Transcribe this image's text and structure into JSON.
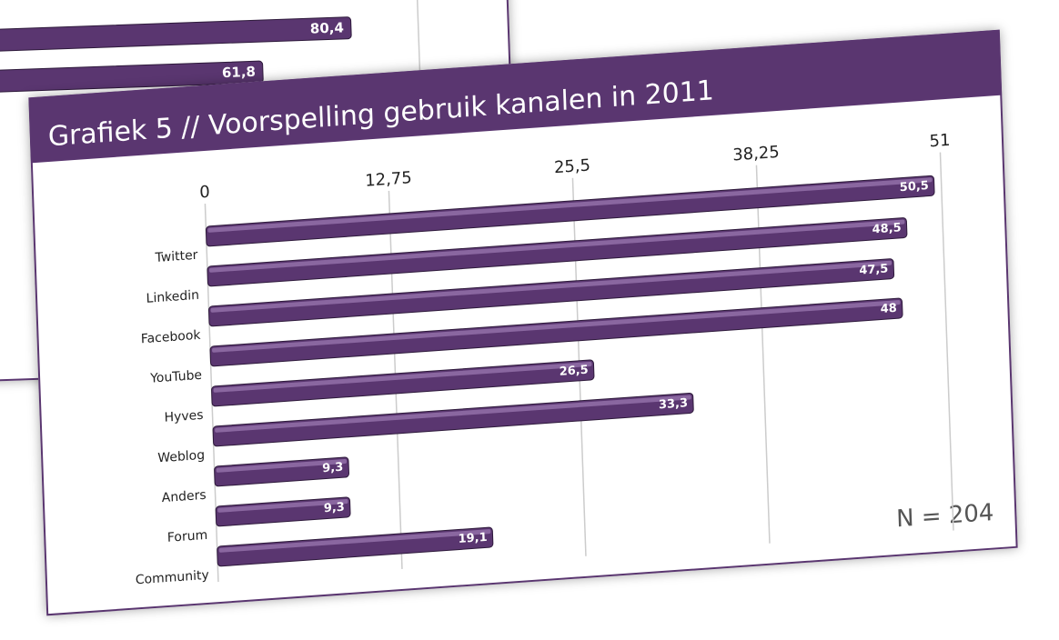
{
  "chart_data": [
    {
      "type": "hbar",
      "title": "Grafiek 5 // Voorspelling gebruik kanalen in 2011",
      "categories": [
        "Twitter",
        "Linkedin",
        "Facebook",
        "YouTube",
        "Hyves",
        "Weblog",
        "Anders",
        "Forum",
        "Community"
      ],
      "values": [
        50.5,
        48.5,
        47.5,
        48,
        26.5,
        33.3,
        9.3,
        9.3,
        19.1
      ],
      "value_labels": [
        "50,5",
        "48,5",
        "47,5",
        "48",
        "26,5",
        "33,3",
        "9,3",
        "9,3",
        "19,1"
      ],
      "color": "#5a3670",
      "xlim": [
        0,
        51
      ],
      "xticks": [
        0,
        {
          "value": 12.75,
          "label": "12,75"
        },
        {
          "value": 25.5,
          "label": "25,5"
        },
        {
          "value": 38.25,
          "label": "38,25"
        },
        51
      ],
      "grid": true,
      "annotation": "N = 204"
    },
    {
      "type": "hbar-fragment",
      "values": [
        80.4,
        61.8
      ],
      "value_labels": [
        "80,4",
        "61,8"
      ],
      "color": "#5a3670"
    }
  ]
}
